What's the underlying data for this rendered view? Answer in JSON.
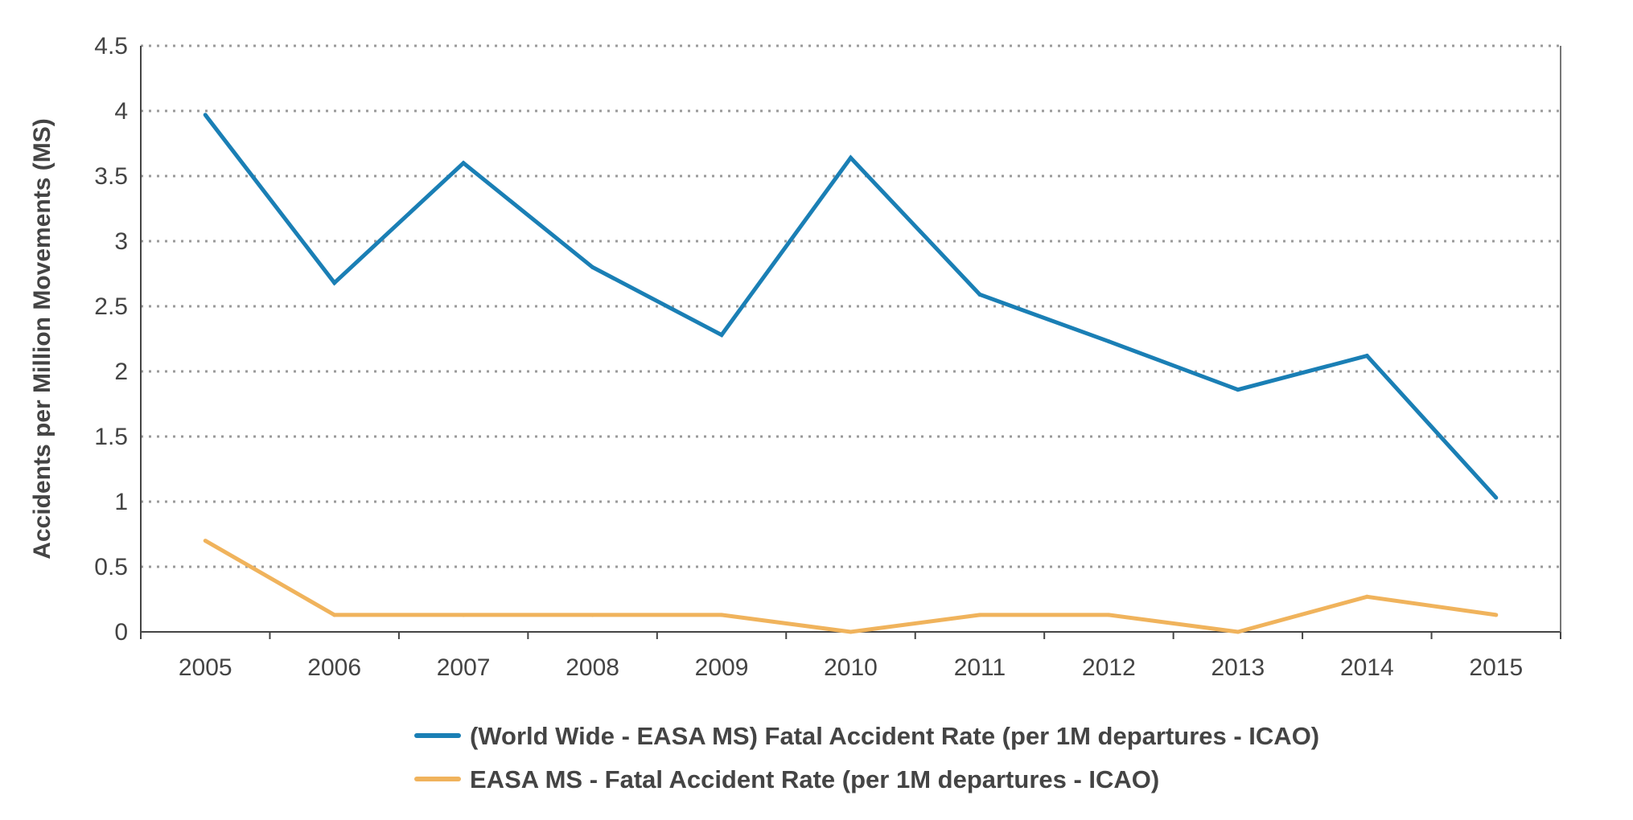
{
  "chart_data": {
    "type": "line",
    "title": "",
    "xlabel": "",
    "ylabel": "Accidents per Million Movements (MS)",
    "categories": [
      "2005",
      "2006",
      "2007",
      "2008",
      "2009",
      "2010",
      "2011",
      "2012",
      "2013",
      "2014",
      "2015"
    ],
    "ylim": [
      0,
      4.5
    ],
    "yticks": [
      "0",
      "0.5",
      "1",
      "1.5",
      "2",
      "2.5",
      "3",
      "3.5",
      "4",
      "4.5"
    ],
    "grid": true,
    "legend_position": "bottom",
    "series": [
      {
        "name": "(World Wide - EASA MS) Fatal Accident Rate (per 1M departures - ICAO)",
        "color": "#1a7fb5",
        "values": [
          3.97,
          2.68,
          3.6,
          2.8,
          2.28,
          3.64,
          2.59,
          2.23,
          1.86,
          2.12,
          1.03
        ]
      },
      {
        "name": "EASA MS - Fatal Accident Rate (per 1M departures - ICAO)",
        "color": "#f0b35c",
        "values": [
          0.7,
          0.13,
          0.13,
          0.13,
          0.13,
          0.0,
          0.13,
          0.13,
          0.0,
          0.27,
          0.13
        ]
      }
    ]
  }
}
